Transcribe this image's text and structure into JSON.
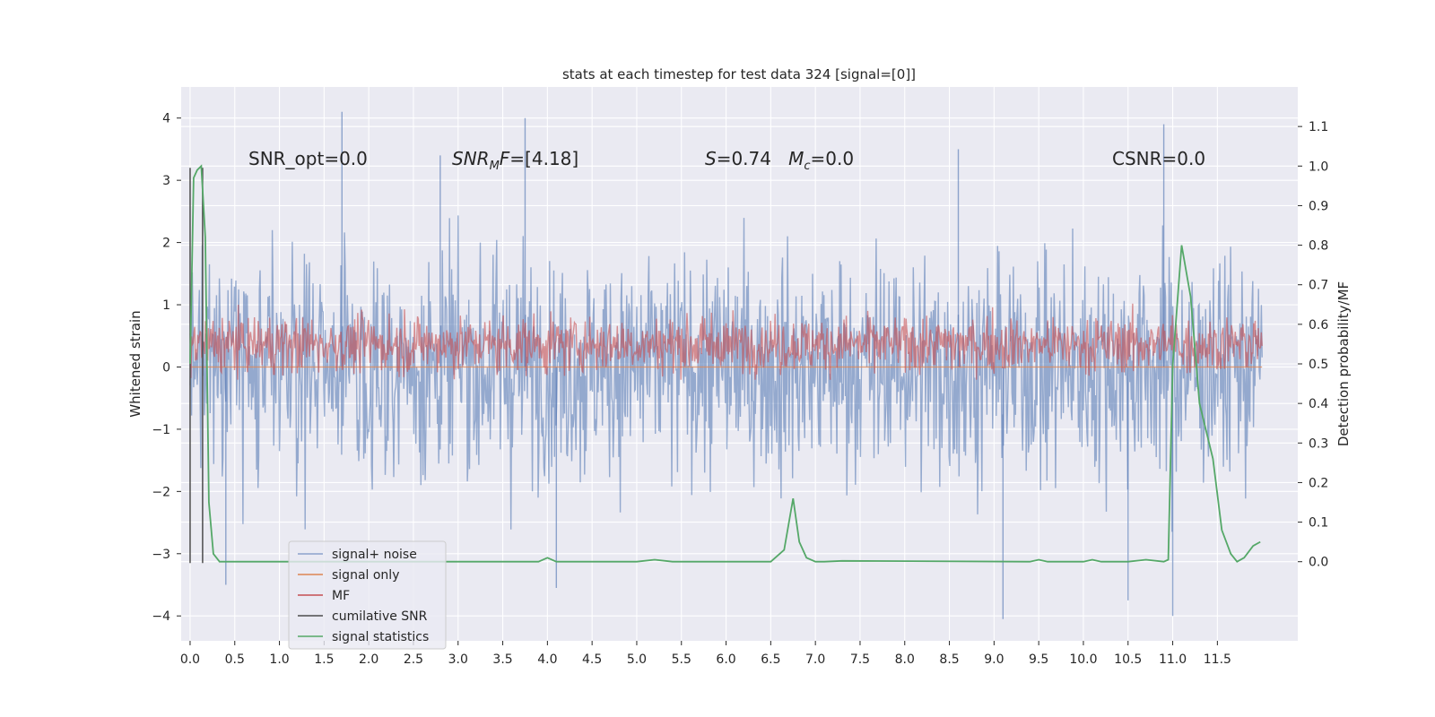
{
  "chart_data": {
    "type": "line",
    "title": "stats at each timestep for test data 324 [signal=[0]]",
    "ylabel_left": "Whitened strain",
    "ylabel_right": "Detection probability/MF",
    "xticks": [
      "0.0",
      "0.5",
      "1.0",
      "1.5",
      "2.0",
      "2.5",
      "3.0",
      "3.5",
      "4.0",
      "4.5",
      "5.0",
      "5.5",
      "6.0",
      "6.5",
      "7.0",
      "7.5",
      "8.0",
      "8.5",
      "9.0",
      "9.5",
      "10.0",
      "10.5",
      "11.0",
      "11.5"
    ],
    "xlim": [
      -0.1,
      12.4
    ],
    "ylim_left": [
      -4.4,
      4.5
    ],
    "yticks_left": [
      "−4",
      "−3",
      "−2",
      "−1",
      "0",
      "1",
      "2",
      "3",
      "4"
    ],
    "ylim_right": [
      -0.2,
      1.2
    ],
    "yticks_right": [
      "0.0",
      "0.1",
      "0.2",
      "0.3",
      "0.4",
      "0.5",
      "0.6",
      "0.7",
      "0.8",
      "0.9",
      "1.0",
      "1.1"
    ],
    "grid": true,
    "legend_placement": "lower-left",
    "annotations": {
      "snr_opt": "SNR_opt=0.0",
      "snr_mf": "SNR_MF=[4.18]",
      "s_mc": "S=0.74   M_c=0.0",
      "csnr": "CSNR=0.0"
    },
    "series": [
      {
        "name": "signal+ noise",
        "color": "#4c72b0",
        "style": "dense noise band",
        "x_range": [
          0.0,
          12.0
        ],
        "typical_range": [
          -1.4,
          1.4
        ],
        "spike_peaks": [
          [
            1.7,
            4.1
          ],
          [
            3.75,
            4.0
          ],
          [
            10.9,
            3.9
          ],
          [
            2.8,
            3.4
          ],
          [
            8.6,
            3.5
          ],
          [
            9.1,
            -4.05
          ],
          [
            11.0,
            -4.0
          ],
          [
            0.4,
            -3.5
          ],
          [
            4.1,
            -3.55
          ],
          [
            10.5,
            -3.75
          ]
        ]
      },
      {
        "name": "signal only",
        "color": "#dd8452",
        "style": "flat at zero",
        "x": [
          0.0,
          12.0
        ],
        "y": [
          0.0,
          0.0
        ]
      },
      {
        "name": "MF",
        "color": "#c44e52",
        "style": "dense band on right axis",
        "x_range": [
          0.0,
          12.0
        ],
        "typical_range_right": [
          0.5,
          0.6
        ],
        "max_right": 0.66
      },
      {
        "name": "cumilative SNR",
        "color": "#4c4c4c",
        "x": [
          0.0,
          0.0,
          0.14,
          0.14
        ],
        "y": [
          3.2,
          -3.15,
          3.2,
          -3.15
        ]
      },
      {
        "name": "signal statistics",
        "color": "#55a868",
        "axis": "right",
        "x": [
          0.0,
          0.04,
          0.08,
          0.125,
          0.17,
          0.21,
          0.26,
          0.33,
          0.5,
          1.0,
          2.0,
          3.0,
          3.9,
          4.0,
          4.1,
          5.0,
          5.2,
          5.4,
          6.5,
          6.65,
          6.75,
          6.82,
          6.9,
          7.0,
          7.1,
          7.3,
          9.4,
          9.5,
          9.6,
          9.8,
          10.0,
          10.1,
          10.2,
          10.5,
          10.7,
          10.9,
          10.95,
          11.0,
          11.1,
          11.2,
          11.3,
          11.45,
          11.55,
          11.65,
          11.72,
          11.8,
          11.9,
          11.98
        ],
        "y": [
          0.5,
          0.97,
          0.99,
          1.0,
          0.82,
          0.15,
          0.02,
          0.0,
          0.0,
          0.0,
          0.0,
          0.0,
          0.0,
          0.01,
          0.0,
          0.0,
          0.005,
          0.0,
          0.0,
          0.03,
          0.16,
          0.05,
          0.01,
          0.0,
          0.0,
          0.002,
          0.0,
          0.005,
          0.0,
          0.0,
          0.0,
          0.005,
          0.0,
          0.0,
          0.005,
          0.0,
          0.005,
          0.5,
          0.8,
          0.67,
          0.4,
          0.26,
          0.08,
          0.02,
          0.0,
          0.01,
          0.04,
          0.05
        ]
      }
    ]
  }
}
